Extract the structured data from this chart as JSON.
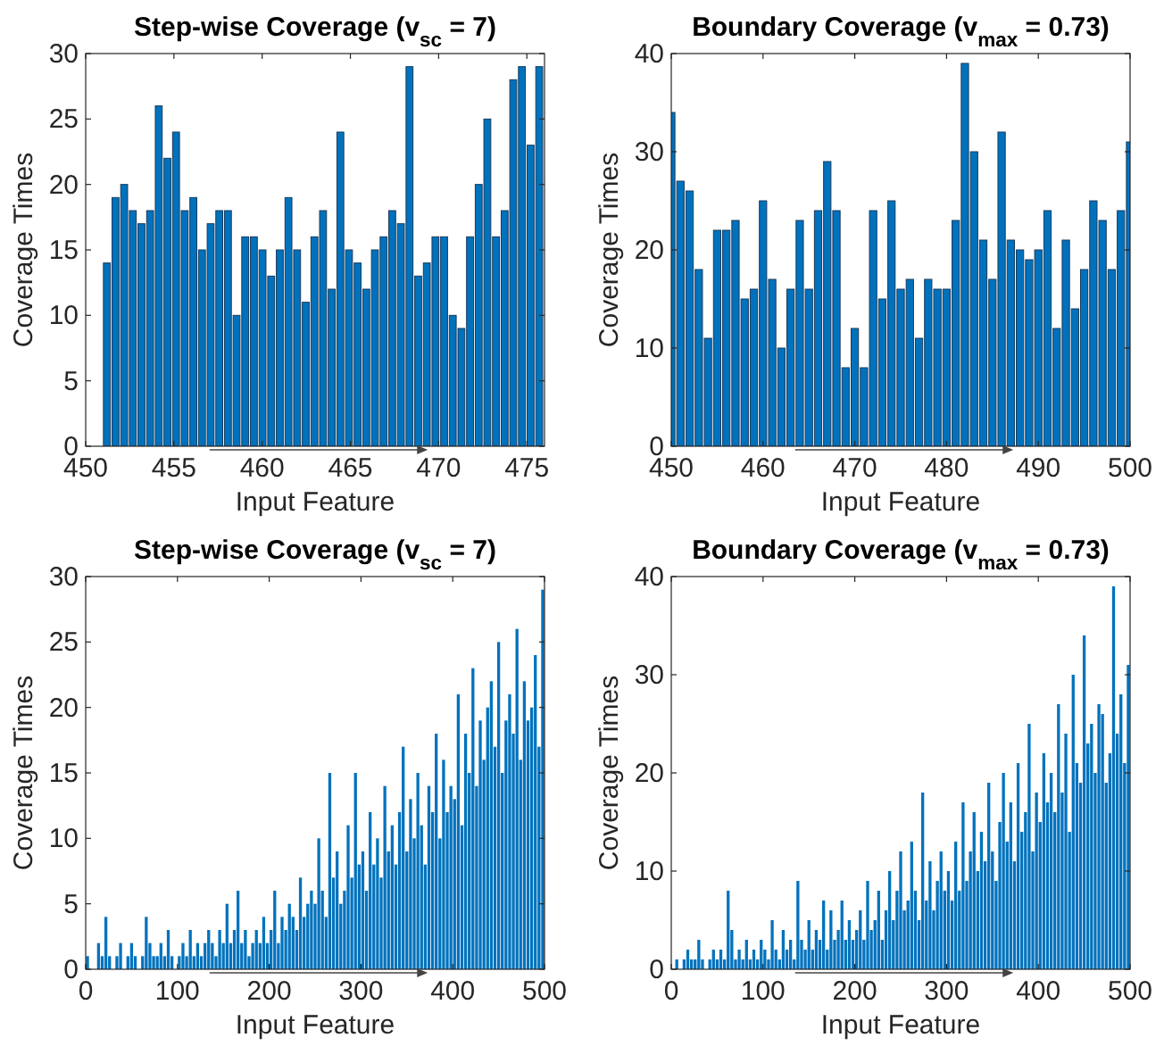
{
  "chart_data": [
    {
      "type": "bar",
      "title": "Step-wise Coverage (v$_{sc}$ = 7)",
      "xlabel": "Input Feature",
      "ylabel": "Coverage Times",
      "color": "#0072bd",
      "xlim": [
        450,
        476
      ],
      "xticks": [
        450,
        455,
        460,
        465,
        470,
        475
      ],
      "ylim": [
        0,
        30
      ],
      "yticks": [
        0,
        5,
        10,
        15,
        20,
        25,
        30
      ],
      "x": [
        451.2,
        451.69,
        452.18,
        452.67,
        453.16,
        453.65,
        454.14,
        454.63,
        455.12,
        455.61,
        456.1,
        456.59,
        457.08,
        457.57,
        458.06,
        458.55,
        459.04,
        459.53,
        460.02,
        460.51,
        461.0,
        461.49,
        461.98,
        462.47,
        462.96,
        463.45,
        463.94,
        464.43,
        464.92,
        465.41,
        465.9,
        466.39,
        466.88,
        467.37,
        467.86,
        468.35,
        468.84,
        469.33,
        469.82,
        470.31,
        470.8,
        471.29,
        471.78,
        472.27,
        472.76,
        473.25,
        473.74,
        474.23,
        474.72,
        475.21,
        475.7
      ],
      "values": [
        14,
        19,
        20,
        18,
        17,
        18,
        26,
        22,
        24,
        18,
        19,
        15,
        17,
        18,
        18,
        10,
        16,
        16,
        15,
        13,
        15,
        19,
        15,
        11,
        16,
        18,
        12,
        24,
        15,
        14,
        12,
        15,
        16,
        18,
        17,
        29,
        13,
        14,
        16,
        16,
        10,
        9,
        16,
        20,
        25,
        16,
        18,
        28,
        29,
        23,
        29
      ]
    },
    {
      "type": "bar",
      "title": "Boundary Coverage (v$_{max}$ = 0.73)",
      "xlabel": "Input Feature",
      "ylabel": "Coverage Times",
      "color": "#0072bd",
      "xlim": [
        450,
        500
      ],
      "xticks": [
        450,
        460,
        470,
        480,
        490,
        500
      ],
      "ylim": [
        0,
        40
      ],
      "yticks": [
        0,
        10,
        20,
        30,
        40
      ],
      "x": [
        450,
        451,
        452,
        453,
        454,
        455,
        456,
        457,
        458,
        459,
        460,
        461,
        462,
        463,
        464,
        465,
        466,
        467,
        468,
        469,
        470,
        471,
        472,
        473,
        474,
        475,
        476,
        477,
        478,
        479,
        480,
        481,
        482,
        483,
        484,
        485,
        486,
        487,
        488,
        489,
        490,
        491,
        492,
        493,
        494,
        495,
        496,
        497,
        498,
        499,
        500
      ],
      "values": [
        34,
        27,
        26,
        18,
        11,
        22,
        22,
        23,
        15,
        16,
        25,
        17,
        10,
        16,
        23,
        16,
        24,
        29,
        24,
        8,
        12,
        8,
        24,
        15,
        25,
        16,
        17,
        11,
        17,
        16,
        16,
        23,
        39,
        30,
        21,
        17,
        32,
        21,
        20,
        19,
        20,
        24,
        12,
        21,
        14,
        18,
        25,
        23,
        18,
        24,
        31
      ]
    },
    {
      "type": "bar",
      "title": "Step-wise Coverage (v$_{sc}$ = 7)",
      "xlabel": "Input Feature",
      "ylabel": "Coverage Times",
      "color": "#0072bd",
      "xlim": [
        0,
        500
      ],
      "xticks": [
        0,
        100,
        200,
        300,
        400,
        500
      ],
      "ylim": [
        0,
        30
      ],
      "yticks": [
        0,
        5,
        10,
        15,
        20,
        25,
        30
      ],
      "x": [
        2,
        6,
        10,
        14,
        18,
        22,
        26,
        30,
        34,
        38,
        42,
        46,
        50,
        54,
        58,
        62,
        66,
        70,
        74,
        78,
        82,
        86,
        90,
        94,
        98,
        102,
        106,
        110,
        114,
        118,
        122,
        126,
        130,
        134,
        138,
        142,
        146,
        150,
        154,
        158,
        162,
        166,
        170,
        174,
        178,
        182,
        186,
        190,
        194,
        198,
        202,
        206,
        210,
        214,
        218,
        222,
        226,
        230,
        234,
        238,
        242,
        246,
        250,
        254,
        258,
        262,
        266,
        270,
        274,
        278,
        282,
        286,
        290,
        294,
        298,
        302,
        306,
        310,
        314,
        318,
        322,
        326,
        330,
        334,
        338,
        342,
        346,
        350,
        354,
        358,
        362,
        366,
        370,
        374,
        378,
        382,
        386,
        390,
        394,
        398,
        402,
        406,
        410,
        414,
        418,
        422,
        426,
        430,
        434,
        438,
        442,
        446,
        450,
        454,
        458,
        462,
        466,
        470,
        474,
        478,
        482,
        486,
        490,
        494,
        498
      ],
      "values": [
        1,
        0,
        0,
        2,
        1,
        4,
        1,
        0,
        1,
        2,
        0,
        1,
        2,
        1,
        0,
        1,
        4,
        2,
        1,
        1,
        2,
        1,
        3,
        1,
        0,
        1,
        2,
        1,
        3,
        1,
        2,
        1,
        2,
        3,
        2,
        1,
        3,
        2,
        5,
        2,
        3,
        6,
        2,
        3,
        1,
        2,
        3,
        2,
        4,
        2,
        3,
        6,
        2,
        4,
        3,
        5,
        4,
        3,
        7,
        4,
        5,
        6,
        5,
        10,
        6,
        4,
        15,
        7,
        9,
        5,
        6,
        11,
        7,
        15,
        8,
        9,
        6,
        12,
        8,
        10,
        7,
        14,
        9,
        11,
        8,
        12,
        17,
        9,
        13,
        10,
        15,
        11,
        8,
        14,
        12,
        18,
        10,
        16,
        12,
        14,
        13,
        21,
        11,
        18,
        15,
        23,
        14,
        19,
        16,
        20,
        22,
        17,
        25,
        15,
        19,
        21,
        18,
        26,
        16,
        22,
        19,
        20,
        24,
        17,
        29
      ]
    },
    {
      "type": "bar",
      "title": "Boundary Coverage (v$_{max}$ = 0.73)",
      "xlabel": "Input Feature",
      "ylabel": "Coverage Times",
      "color": "#0072bd",
      "xlim": [
        0,
        500
      ],
      "xticks": [
        0,
        100,
        200,
        300,
        400,
        500
      ],
      "ylim": [
        0,
        40
      ],
      "yticks": [
        0,
        10,
        20,
        30,
        40
      ],
      "x": [
        2,
        6,
        10,
        14,
        18,
        22,
        26,
        30,
        34,
        38,
        42,
        46,
        50,
        54,
        58,
        62,
        66,
        70,
        74,
        78,
        82,
        86,
        90,
        94,
        98,
        102,
        106,
        110,
        114,
        118,
        122,
        126,
        130,
        134,
        138,
        142,
        146,
        150,
        154,
        158,
        162,
        166,
        170,
        174,
        178,
        182,
        186,
        190,
        194,
        198,
        202,
        206,
        210,
        214,
        218,
        222,
        226,
        230,
        234,
        238,
        242,
        246,
        250,
        254,
        258,
        262,
        266,
        270,
        274,
        278,
        282,
        286,
        290,
        294,
        298,
        302,
        306,
        310,
        314,
        318,
        322,
        326,
        330,
        334,
        338,
        342,
        346,
        350,
        354,
        358,
        362,
        366,
        370,
        374,
        378,
        382,
        386,
        390,
        394,
        398,
        402,
        406,
        410,
        414,
        418,
        422,
        426,
        430,
        434,
        438,
        442,
        446,
        450,
        454,
        458,
        462,
        466,
        470,
        474,
        478,
        482,
        486,
        490,
        494,
        498
      ],
      "values": [
        0,
        1,
        0,
        1,
        2,
        1,
        1,
        3,
        1,
        0,
        1,
        2,
        1,
        2,
        1,
        8,
        4,
        1,
        2,
        1,
        3,
        1,
        2,
        1,
        3,
        2,
        1,
        5,
        2,
        1,
        4,
        2,
        3,
        1,
        9,
        3,
        2,
        5,
        2,
        4,
        3,
        7,
        2,
        6,
        3,
        4,
        7,
        3,
        5,
        3,
        4,
        6,
        3,
        9,
        4,
        5,
        8,
        3,
        6,
        10,
        5,
        8,
        12,
        6,
        7,
        13,
        8,
        5,
        18,
        7,
        11,
        6,
        9,
        12,
        8,
        10,
        7,
        13,
        8,
        17,
        9,
        12,
        16,
        10,
        14,
        11,
        19,
        12,
        9,
        15,
        20,
        13,
        17,
        11,
        21,
        14,
        16,
        25,
        12,
        18,
        15,
        22,
        17,
        20,
        16,
        27,
        18,
        24,
        14,
        30,
        21,
        19,
        34,
        23,
        25,
        20,
        27,
        26,
        19,
        22,
        39,
        24,
        28,
        21,
        31
      ]
    }
  ]
}
